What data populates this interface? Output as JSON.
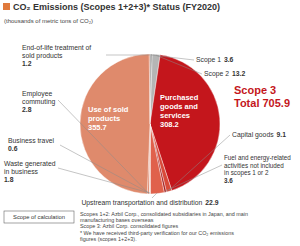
{
  "chart_data": {
    "type": "pie",
    "title": "CO₂ Emissions (Scopes 1+2+3)* Status (FY2020)",
    "subtitle": "(thousands of metric tons of CO₂)",
    "categories": [
      "Scope 1",
      "Scope 2",
      "Purchased goods and services",
      "Capital goods",
      "Fuel and energy-related activities not included in scopes 1 or 2",
      "Upstream transportation and distribution",
      "Waste generated in business",
      "Business travel",
      "Employee commuting",
      "Use of sold products",
      "End-of-life treatment of sold products"
    ],
    "values": [
      3.6,
      13.2,
      308.2,
      9.1,
      3.6,
      22.9,
      1.8,
      0.6,
      2.8,
      355.7,
      1.2
    ],
    "colors": [
      "#8f8f8f",
      "#b5b5b5",
      "#c4161c",
      "#d84a3a",
      "#a51c1c",
      "#e0614c",
      "#eba08a",
      "#f2bca8",
      "#d9785a",
      "#df8a6c",
      "#c9613f"
    ],
    "data_labels": true,
    "scope3": {
      "label": "Scope 3",
      "total_label": "Total",
      "total": 705.9
    },
    "notes": {
      "box": "Scope of calculation",
      "lines": [
        "Scopes 1+2: Azbil Corp., consolidated subsidiaries in Japan, and main manufacturing bases overseas",
        "Scope 3: Azbil Corp. consolidated figures",
        "* We have received third-party verification for our CO₂ emissions figures (scopes 1+2+3)."
      ]
    }
  }
}
